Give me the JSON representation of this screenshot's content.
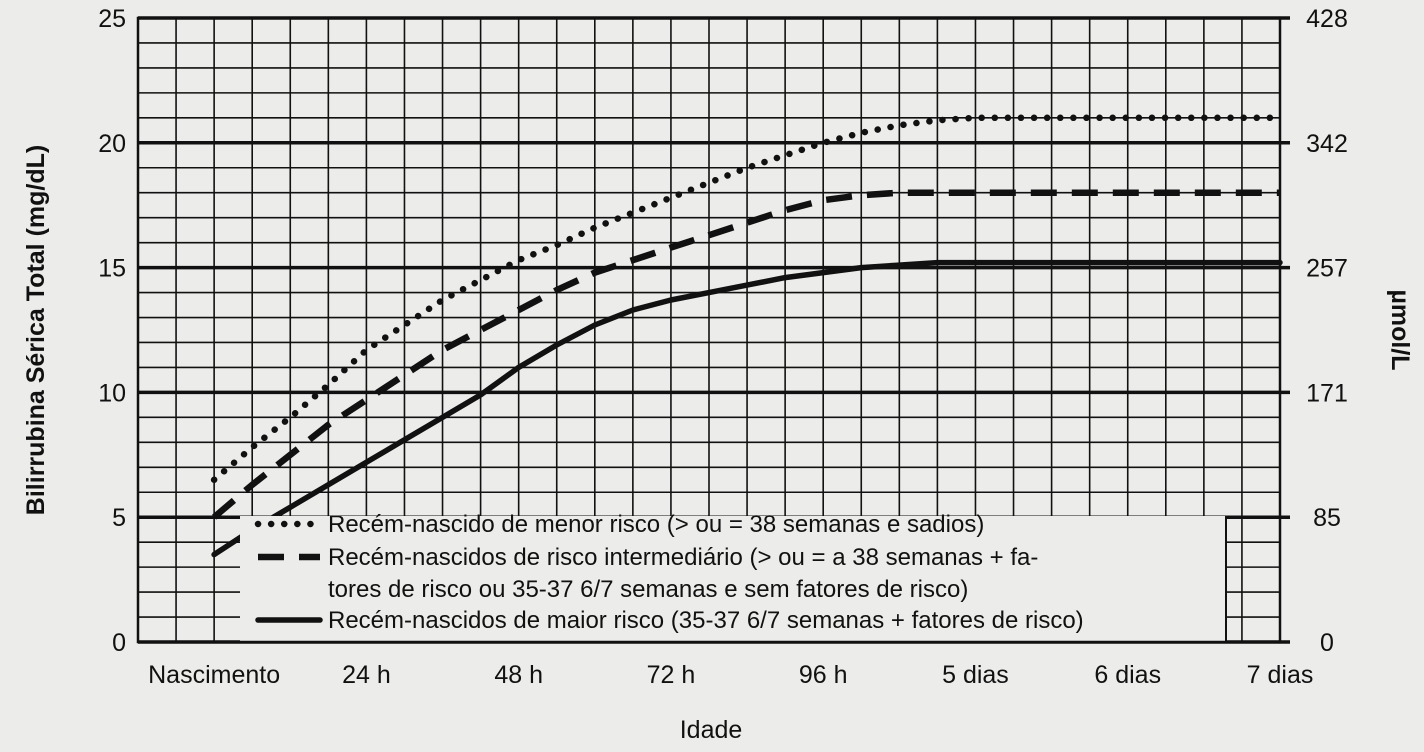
{
  "chart_data": {
    "type": "line",
    "ylabel": "Bilirrubina Sérica Total (mg/dL)",
    "ylabel_right": "µmol/L",
    "xlabel": "Idade",
    "ylim": [
      0,
      25
    ],
    "yticks": [
      0,
      5,
      10,
      15,
      20,
      25
    ],
    "yticks_right": [
      "0",
      "85",
      "171",
      "257",
      "342",
      "428"
    ],
    "xlim": [
      -12,
      168
    ],
    "x_unit": "hours since birth",
    "xticks": [
      {
        "x": 0,
        "label": "Nascimento"
      },
      {
        "x": 24,
        "label": "24 h"
      },
      {
        "x": 48,
        "label": "48 h"
      },
      {
        "x": 72,
        "label": "72 h"
      },
      {
        "x": 96,
        "label": "96 h"
      },
      {
        "x": 120,
        "label": "5 dias"
      },
      {
        "x": 144,
        "label": "6 dias"
      },
      {
        "x": 168,
        "label": "7 dias"
      }
    ],
    "grid": true,
    "legend_position": "bottom-right",
    "series": [
      {
        "name": "Recém-nascido de menor risco (> ou = 38 semanas e sadios)",
        "style": "dotted",
        "points": [
          [
            0,
            6.5
          ],
          [
            6,
            7.8
          ],
          [
            12,
            9
          ],
          [
            18,
            10.3
          ],
          [
            24,
            11.7
          ],
          [
            30,
            12.7
          ],
          [
            36,
            13.7
          ],
          [
            42,
            14.5
          ],
          [
            48,
            15.3
          ],
          [
            54,
            15.9
          ],
          [
            60,
            16.6
          ],
          [
            66,
            17.2
          ],
          [
            72,
            17.8
          ],
          [
            78,
            18.4
          ],
          [
            84,
            19
          ],
          [
            90,
            19.5
          ],
          [
            96,
            20
          ],
          [
            102,
            20.4
          ],
          [
            108,
            20.7
          ],
          [
            114,
            20.9
          ],
          [
            120,
            21
          ],
          [
            132,
            21
          ],
          [
            144,
            21
          ],
          [
            156,
            21
          ],
          [
            168,
            21
          ]
        ]
      },
      {
        "name": "Recém-nascidos de risco intermediário (> ou = a 38 semanas + fatores de risco ou 35-37 6/7 semanas e sem fatores de risco)",
        "style": "dashed",
        "points": [
          [
            0,
            5
          ],
          [
            6,
            6.3
          ],
          [
            12,
            7.5
          ],
          [
            18,
            8.7
          ],
          [
            24,
            9.7
          ],
          [
            30,
            10.7
          ],
          [
            36,
            11.7
          ],
          [
            42,
            12.5
          ],
          [
            48,
            13.3
          ],
          [
            54,
            14.1
          ],
          [
            60,
            14.8
          ],
          [
            66,
            15.3
          ],
          [
            72,
            15.8
          ],
          [
            78,
            16.3
          ],
          [
            84,
            16.8
          ],
          [
            90,
            17.3
          ],
          [
            96,
            17.7
          ],
          [
            102,
            17.9
          ],
          [
            108,
            18
          ],
          [
            120,
            18
          ],
          [
            132,
            18
          ],
          [
            144,
            18
          ],
          [
            156,
            18
          ],
          [
            168,
            18
          ]
        ]
      },
      {
        "name": "Recém-nascidos de maior risco (35-37 6/7 semanas + fatores de risco)",
        "style": "solid",
        "points": [
          [
            0,
            3.5
          ],
          [
            6,
            4.5
          ],
          [
            12,
            5.4
          ],
          [
            18,
            6.3
          ],
          [
            24,
            7.2
          ],
          [
            30,
            8.1
          ],
          [
            36,
            9
          ],
          [
            42,
            9.9
          ],
          [
            48,
            11
          ],
          [
            54,
            11.9
          ],
          [
            60,
            12.7
          ],
          [
            66,
            13.3
          ],
          [
            72,
            13.7
          ],
          [
            78,
            14
          ],
          [
            84,
            14.3
          ],
          [
            90,
            14.6
          ],
          [
            96,
            14.8
          ],
          [
            102,
            15
          ],
          [
            108,
            15.1
          ],
          [
            114,
            15.2
          ],
          [
            120,
            15.2
          ],
          [
            132,
            15.2
          ],
          [
            144,
            15.2
          ],
          [
            156,
            15.2
          ],
          [
            168,
            15.2
          ]
        ]
      }
    ],
    "legend_lines": [
      {
        "series": 0,
        "text": "Recém-nascido de menor risco (> ou = 38 semanas e sadios)"
      },
      {
        "series": 1,
        "text": "Recém-nascidos de risco intermediário (> ou = a 38 semanas + fa-"
      },
      {
        "series": -1,
        "text": "tores de risco ou 35-37 6/7 semanas e sem fatores de risco)"
      },
      {
        "series": 2,
        "text": "Recém-nascidos de maior risco (35-37 6/7 semanas + fatores de risco)"
      }
    ]
  }
}
